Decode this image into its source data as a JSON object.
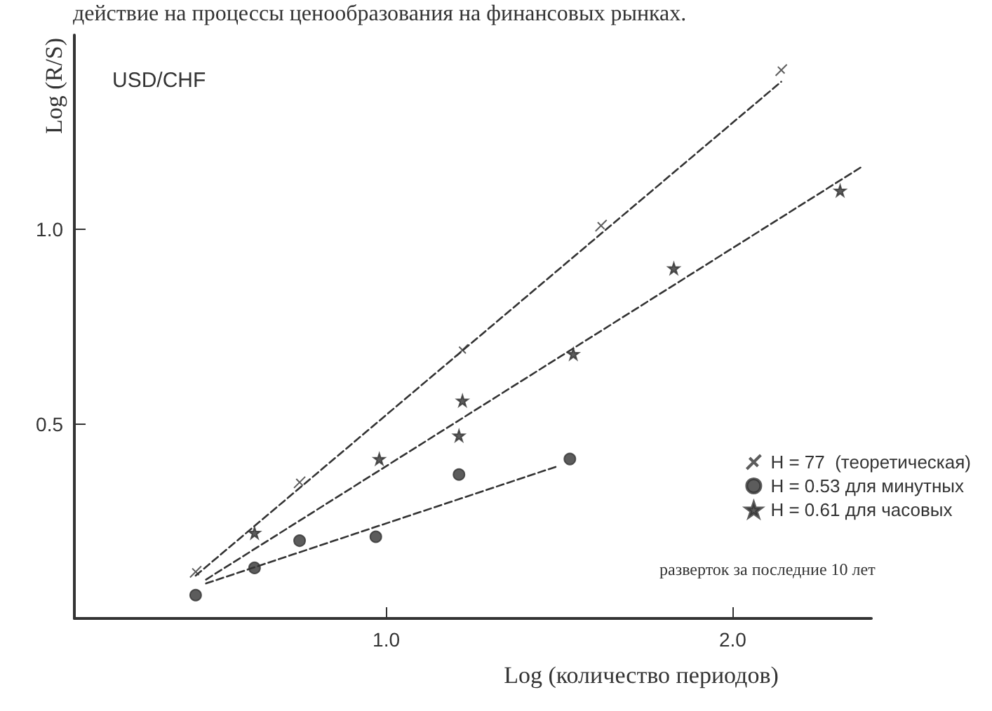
{
  "chart_data": {
    "type": "scatter",
    "xlabel": "Log (количество периодов)",
    "ylabel": "Log (R/S)",
    "annotations": [
      "действие на процессы ценообразования на финансовых рынках.",
      "USD/CHF",
      "разверток за последние 10 лет"
    ],
    "xlim": [
      0.1,
      2.4
    ],
    "ylim": [
      0,
      1.5
    ],
    "xticks": [
      {
        "value": 1,
        "label": "1.0"
      },
      {
        "value": 2,
        "label": "2.0"
      }
    ],
    "yticks": [
      {
        "value": 0.5,
        "label": "0.5"
      },
      {
        "value": 1,
        "label": "1.0"
      }
    ],
    "grid": false,
    "legend": "bottom right",
    "series": [
      {
        "name": "H = 77  (теоретическая)",
        "color": "#333333",
        "marker": "cross",
        "x": [
          0.45,
          0.75,
          1.22,
          1.62,
          2.14
        ],
        "values": [
          0.12,
          0.35,
          0.69,
          1.01,
          1.41
        ]
      },
      {
        "name": "H = 0.53 для минутных",
        "color": "#333333",
        "marker": "circle",
        "x": [
          0.45,
          0.62,
          0.75,
          0.97,
          1.21,
          1.53
        ],
        "values": [
          0.06,
          0.13,
          0.2,
          0.21,
          0.37,
          0.41
        ]
      },
      {
        "name": "H = 0.61 для часовых",
        "color": "#333333",
        "marker": "star",
        "x": [
          0.62,
          0.98,
          1.22,
          1.21,
          1.54,
          1.83,
          2.31
        ],
        "values": [
          0.22,
          0.41,
          0.56,
          0.47,
          0.68,
          0.9,
          1.1
        ]
      },
      {
        "type": "line",
        "color": "#333333",
        "marker": "none",
        "line_style": "dashed",
        "x": [
          0.45,
          2.14
        ],
        "values": [
          0.11,
          1.38
        ]
      },
      {
        "type": "line",
        "color": "#333333",
        "marker": "none",
        "line_style": "dashed",
        "x": [
          0.48,
          2.37
        ],
        "values": [
          0.1,
          1.16
        ]
      },
      {
        "type": "line",
        "color": "#333333",
        "marker": "none",
        "line_style": "dashed",
        "x": [
          0.48,
          1.49
        ],
        "values": [
          0.09,
          0.39
        ]
      }
    ]
  }
}
